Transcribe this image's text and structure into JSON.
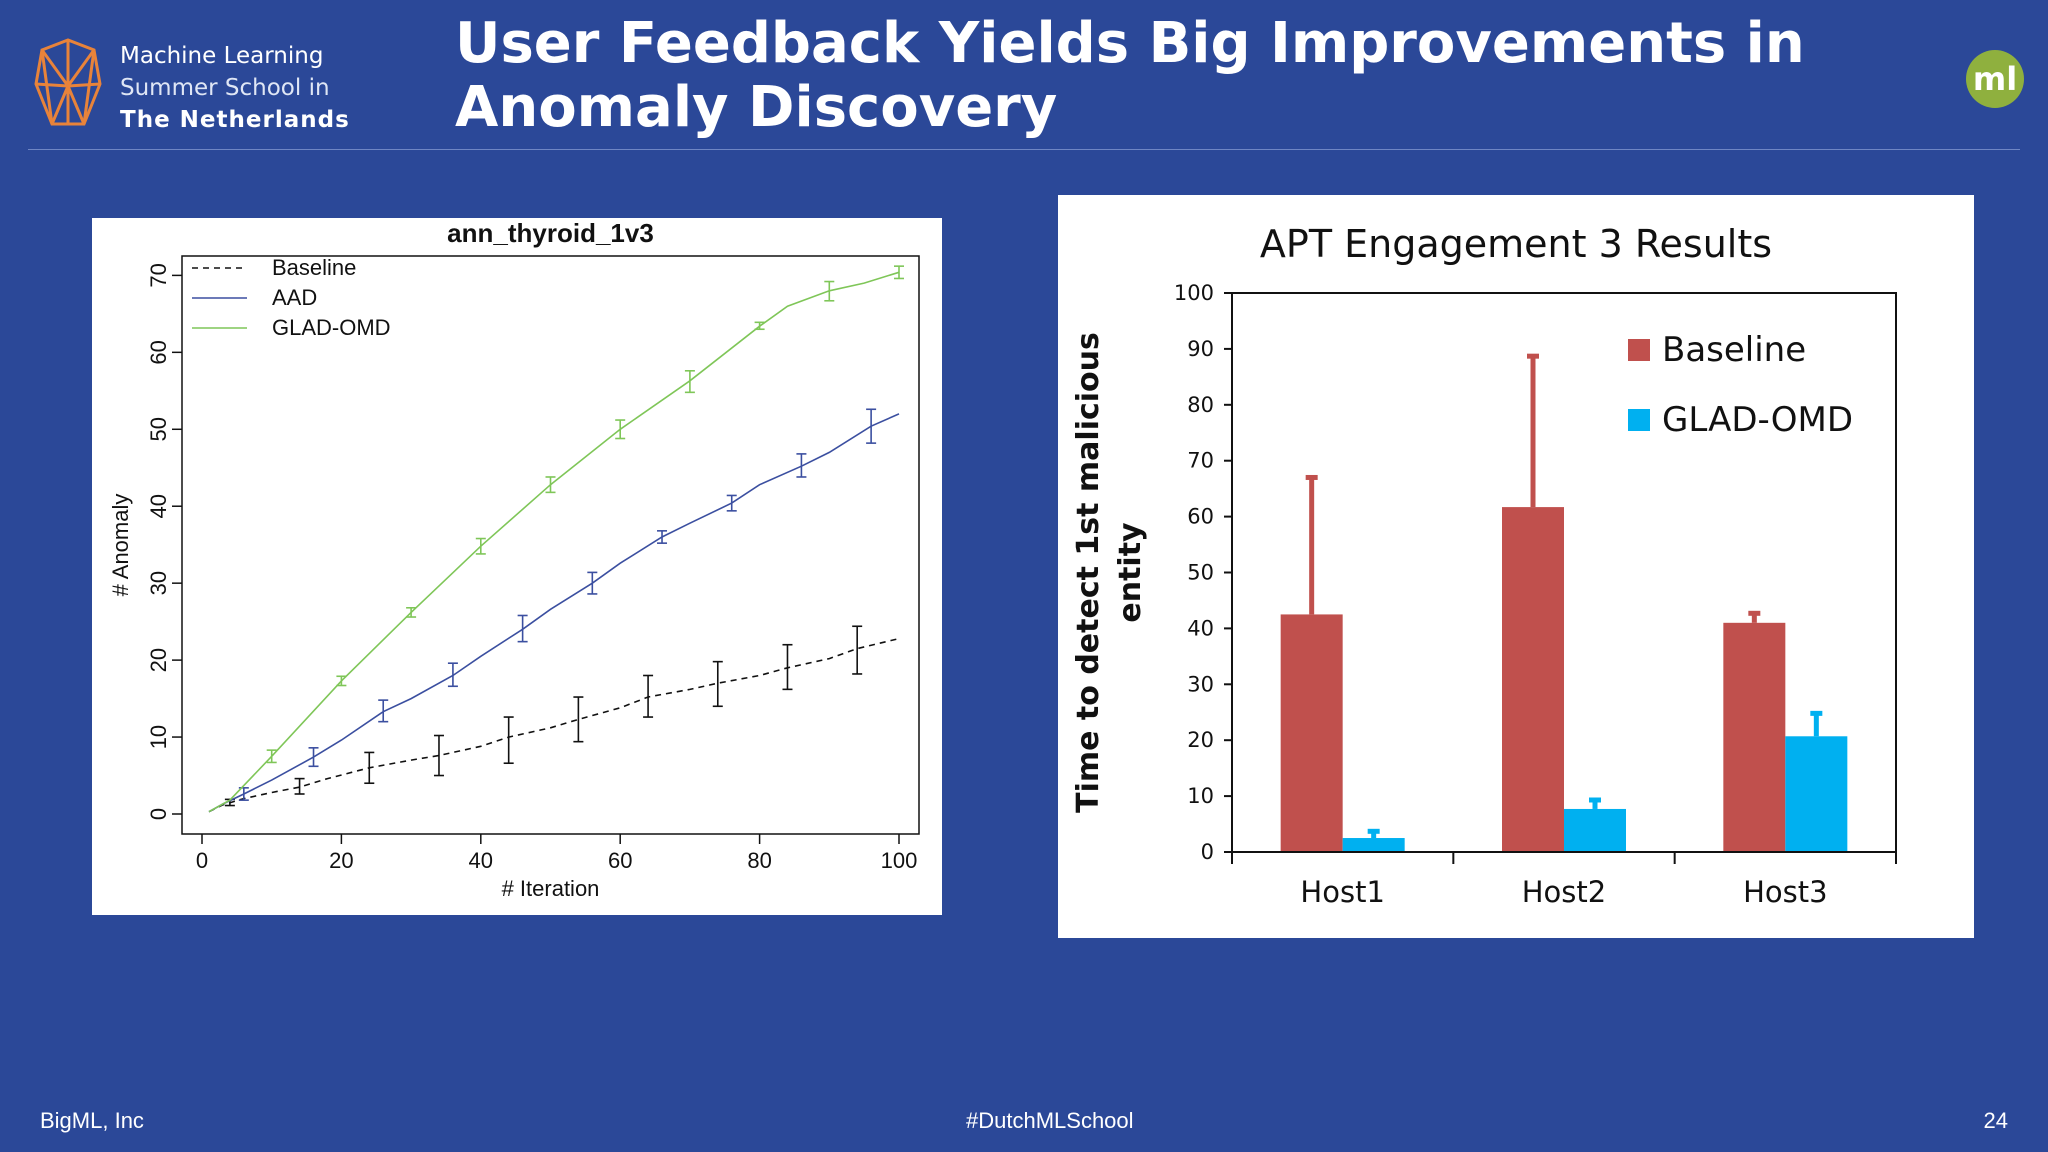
{
  "header": {
    "logo": {
      "line1": "Machine Learning",
      "line2": "Summer School in",
      "line3": "The Netherlands",
      "accent_color": "#e8833a"
    },
    "title_line1": "User Feedback Yields Big Improvements in",
    "title_line2": "Anomaly Discovery",
    "badge_text": "ml",
    "badge_color": "#8fb03e"
  },
  "footer": {
    "left": "BigML, Inc",
    "center": "#DutchMLSchool",
    "page_number": "24"
  },
  "chart_data": [
    {
      "type": "line",
      "title": "ann_thyroid_1v3",
      "xlabel": "# Iteration",
      "ylabel": "# Anomaly",
      "xlim": [
        0,
        100
      ],
      "ylim": [
        0,
        72
      ],
      "xticks": [
        0,
        20,
        40,
        60,
        80,
        100
      ],
      "yticks": [
        0,
        10,
        20,
        30,
        40,
        50,
        60,
        70
      ],
      "legend_position": "top-left",
      "series": [
        {
          "name": "Baseline",
          "color": "#111111",
          "dash": true,
          "x": [
            1,
            3,
            6,
            10,
            14,
            18,
            24,
            30,
            34,
            40,
            44,
            50,
            54,
            60,
            64,
            70,
            74,
            80,
            84,
            90,
            94,
            100
          ],
          "y": [
            0.3,
            1.2,
            2.0,
            2.8,
            3.5,
            4.6,
            6.0,
            7.0,
            7.6,
            8.8,
            10.0,
            11.2,
            12.3,
            13.8,
            15.2,
            16.2,
            17.0,
            18.0,
            19.0,
            20.2,
            21.5,
            22.8
          ],
          "errorbars": [
            {
              "x": 4,
              "lo": 1.1,
              "hi": 1.9
            },
            {
              "x": 14,
              "lo": 2.6,
              "hi": 4.6
            },
            {
              "x": 24,
              "lo": 4.0,
              "hi": 8.0
            },
            {
              "x": 34,
              "lo": 5.0,
              "hi": 10.2
            },
            {
              "x": 44,
              "lo": 6.6,
              "hi": 12.6
            },
            {
              "x": 54,
              "lo": 9.4,
              "hi": 15.2
            },
            {
              "x": 64,
              "lo": 12.6,
              "hi": 18.0
            },
            {
              "x": 74,
              "lo": 14.0,
              "hi": 19.8
            },
            {
              "x": 84,
              "lo": 16.2,
              "hi": 22.0
            },
            {
              "x": 94,
              "lo": 18.2,
              "hi": 24.4
            }
          ]
        },
        {
          "name": "AAD",
          "color": "#3b4fa0",
          "dash": false,
          "x": [
            1,
            3,
            6,
            10,
            16,
            20,
            26,
            30,
            36,
            40,
            46,
            50,
            56,
            60,
            66,
            70,
            76,
            80,
            86,
            90,
            96,
            100
          ],
          "y": [
            0.3,
            1.3,
            2.6,
            4.4,
            7.4,
            9.6,
            13.3,
            15.0,
            18.0,
            20.5,
            24.0,
            26.6,
            30.0,
            32.6,
            36.0,
            37.8,
            40.4,
            42.8,
            45.2,
            47.0,
            50.4,
            52.0
          ],
          "errorbars": [
            {
              "x": 6,
              "lo": 1.8,
              "hi": 3.4
            },
            {
              "x": 16,
              "lo": 6.2,
              "hi": 8.6
            },
            {
              "x": 26,
              "lo": 12.0,
              "hi": 14.8
            },
            {
              "x": 36,
              "lo": 16.6,
              "hi": 19.6
            },
            {
              "x": 46,
              "lo": 22.4,
              "hi": 25.8
            },
            {
              "x": 56,
              "lo": 28.6,
              "hi": 31.4
            },
            {
              "x": 66,
              "lo": 35.2,
              "hi": 36.8
            },
            {
              "x": 76,
              "lo": 39.4,
              "hi": 41.4
            },
            {
              "x": 86,
              "lo": 43.8,
              "hi": 46.8
            },
            {
              "x": 96,
              "lo": 48.2,
              "hi": 52.6
            }
          ]
        },
        {
          "name": "GLAD-OMD",
          "color": "#7fc658",
          "dash": false,
          "x": [
            1,
            4,
            10,
            20,
            30,
            40,
            50,
            60,
            70,
            80,
            84,
            90,
            95,
            100
          ],
          "y": [
            0.3,
            1.8,
            7.5,
            17.3,
            26.2,
            34.8,
            42.8,
            50.0,
            56.3,
            63.4,
            66.0,
            68.0,
            69.0,
            70.4
          ],
          "errorbars": [
            {
              "x": 10,
              "lo": 6.7,
              "hi": 8.3
            },
            {
              "x": 20,
              "lo": 16.7,
              "hi": 17.9
            },
            {
              "x": 30,
              "lo": 25.6,
              "hi": 26.8
            },
            {
              "x": 40,
              "lo": 33.8,
              "hi": 35.8
            },
            {
              "x": 50,
              "lo": 41.8,
              "hi": 43.8
            },
            {
              "x": 60,
              "lo": 48.8,
              "hi": 51.2
            },
            {
              "x": 70,
              "lo": 54.8,
              "hi": 57.6
            },
            {
              "x": 80,
              "lo": 63.0,
              "hi": 63.9
            },
            {
              "x": 90,
              "lo": 66.7,
              "hi": 69.2
            },
            {
              "x": 100,
              "lo": 69.6,
              "hi": 71.2
            }
          ]
        }
      ]
    },
    {
      "type": "bar",
      "title": "APT Engagement 3 Results",
      "xlabel": "",
      "ylabel_line1": "Time to detect 1st malicious",
      "ylabel_line2": "entity",
      "ylim": [
        0,
        100
      ],
      "yticks": [
        0,
        10,
        20,
        30,
        40,
        50,
        60,
        70,
        80,
        90,
        100
      ],
      "legend_position": "top-right",
      "categories": [
        "Host1",
        "Host2",
        "Host3"
      ],
      "series": [
        {
          "name": "Baseline",
          "color": "#c0504d",
          "values": [
            42.5,
            61.7,
            41.0
          ],
          "err_hi": [
            67.0,
            88.7,
            42.7
          ]
        },
        {
          "name": "GLAD-OMD",
          "color": "#00b0f0",
          "values": [
            2.5,
            7.7,
            20.7
          ],
          "err_hi": [
            3.7,
            9.3,
            24.8
          ]
        }
      ]
    }
  ]
}
